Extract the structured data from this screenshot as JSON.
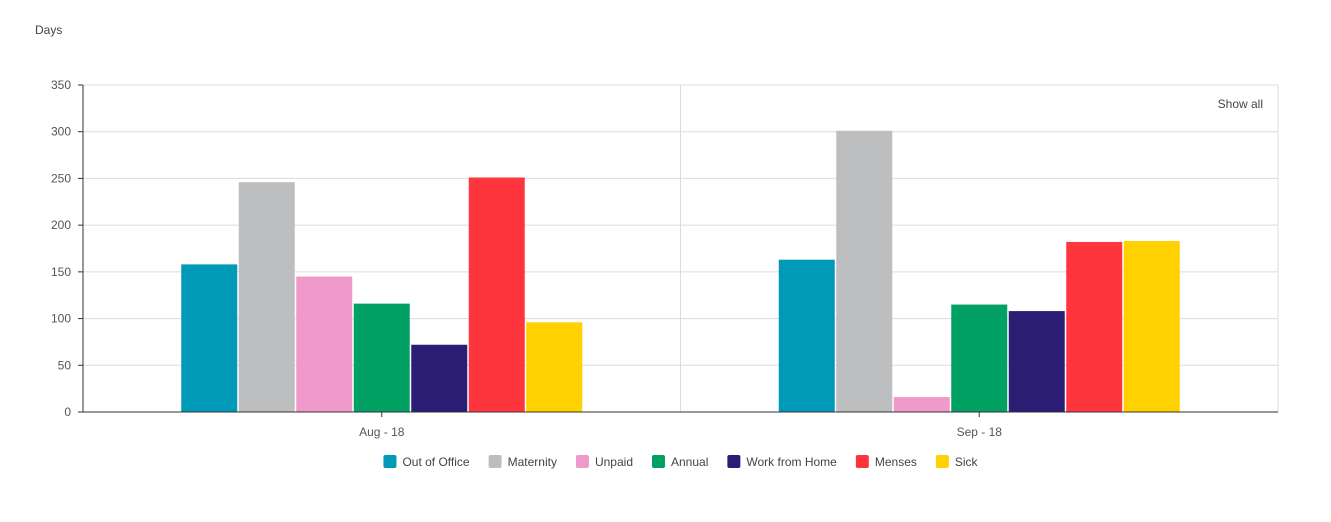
{
  "chart_data": {
    "type": "bar",
    "ylabel": "Days",
    "ylim": [
      0,
      350
    ],
    "yticks": [
      0,
      50,
      100,
      150,
      200,
      250,
      300,
      350
    ],
    "grid": true,
    "legend_position": "bottom",
    "show_all_label": "Show all",
    "categories": [
      "Aug - 18",
      "Sep - 18"
    ],
    "series": [
      {
        "name": "Out of Office",
        "color": "#0099B8",
        "values": [
          158,
          163
        ]
      },
      {
        "name": "Maternity",
        "color": "#BDBEC0",
        "values": [
          246,
          301
        ]
      },
      {
        "name": "Unpaid",
        "color": "#EF9ACB",
        "values": [
          145,
          16
        ]
      },
      {
        "name": "Annual",
        "color": "#00A163",
        "values": [
          116,
          115
        ]
      },
      {
        "name": "Work from Home",
        "color": "#2C1D74",
        "values": [
          72,
          108
        ]
      },
      {
        "name": "Menses",
        "color": "#FF353D",
        "values": [
          251,
          182
        ]
      },
      {
        "name": "Sick",
        "color": "#FFD100",
        "values": [
          96,
          183
        ]
      }
    ]
  }
}
